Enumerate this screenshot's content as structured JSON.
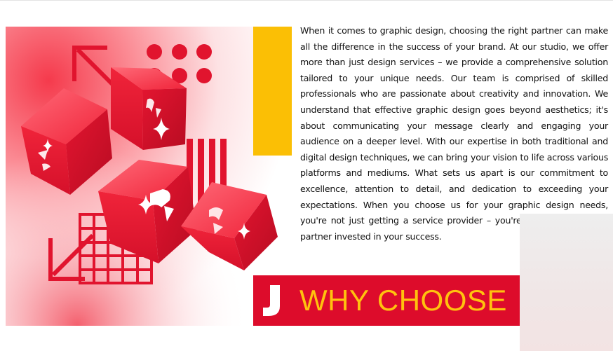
{
  "paragraph": "When it comes to graphic design, choosing the right partner can make all the difference in the success of your brand. At our studio, we offer more than just design services – we provide a comprehensive solution tailored to your unique needs. Our team is comprised of skilled professionals who are passionate about creativity and innovation. We understand that effective graphic design goes beyond aesthetics; it's about communicating your message clearly and engaging your audience on a deeper level. With our expertise in both traditional and digital design techniques, we can bring your vision to life across various platforms and mediums. What sets us apart is our commitment to excellence, attention to detail, and dedication to exceeding your expectations. When you choose us for your graphic design needs, you're not just getting a service provider – you're gaining a strategic partner invested in your success.",
  "banner": {
    "heading": "WHY CHOOSE",
    "brand_letter": "J"
  },
  "colors": {
    "brand_red": "#dd0c2b",
    "accent_yellow": "#fbbf05",
    "heading_yellow": "#ffc20e"
  },
  "icons": [
    "cube-icon",
    "arrow-icon",
    "grid-icon",
    "sparkle-icon",
    "dots-icon",
    "stripes-icon"
  ]
}
